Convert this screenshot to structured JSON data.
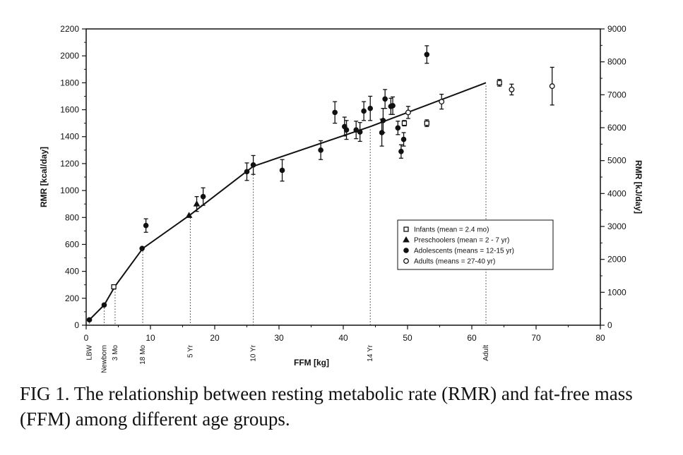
{
  "chart_data": {
    "type": "scatter",
    "xlabel": "FFM [kg]",
    "ylabel": "RMR [kcal/day]",
    "y2label": "RMR [kJ/day]",
    "xlim": [
      0,
      80
    ],
    "ylim": [
      0,
      2200
    ],
    "y2lim": [
      0,
      9000
    ],
    "x_ticks": [
      0,
      10,
      20,
      30,
      40,
      50,
      60,
      70,
      80
    ],
    "x_tick_labels": [
      "0",
      "10",
      "20",
      "30",
      "40",
      "50",
      "60",
      "70",
      "80"
    ],
    "y_ticks": [
      0,
      200,
      400,
      600,
      800,
      1000,
      1200,
      1400,
      1600,
      1800,
      2000,
      2200
    ],
    "y_tick_labels": [
      "0",
      "200",
      "400",
      "600",
      "800",
      "1000",
      "1200",
      "1400",
      "1600",
      "1800",
      "2000",
      "2200"
    ],
    "y2_ticks": [
      0,
      1000,
      2000,
      3000,
      4000,
      5000,
      6000,
      7000,
      8000,
      9000
    ],
    "y2_tick_labels": [
      "0",
      "1000",
      "2000",
      "3000",
      "4000",
      "5000",
      "6000",
      "7000",
      "8000",
      "9000"
    ],
    "age_markers": [
      {
        "label": "LBW",
        "x": 0.5
      },
      {
        "label": "Newborn",
        "x": 2.8
      },
      {
        "label": "3 Mo",
        "x": 4.5
      },
      {
        "label": "18 Mo",
        "x": 8.8
      },
      {
        "label": "5 Yr",
        "x": 16.2
      },
      {
        "label": "10 Yr",
        "x": 26.0
      },
      {
        "label": "14 Yr",
        "x": 44.2
      },
      {
        "label": "Adult",
        "x": 62.2
      }
    ],
    "line": {
      "x": [
        0.5,
        2.8,
        4.5,
        8.8,
        16.2,
        26.0,
        44.2,
        62.2
      ],
      "y": [
        40,
        150,
        290,
        570,
        820,
        1180,
        1475,
        1800
      ]
    },
    "legend": [
      {
        "label": "Infants (mean = 2.4 mo)",
        "marker": "square"
      },
      {
        "label": "Preschoolers (mean = 2 - 7 yr)",
        "marker": "triangle"
      },
      {
        "label": "Adolescents (means = 12-15 yr)",
        "marker": "filled-circle"
      },
      {
        "label": "Adults (means = 27-40 yr)",
        "marker": "open-circle"
      }
    ],
    "series": [
      {
        "name": "Infants (mean = 2.4 mo)",
        "marker": "square",
        "points": [
          {
            "x": 4.3,
            "y": 285,
            "err": 0
          },
          {
            "x": 64.3,
            "y": 1800,
            "err": 25
          },
          {
            "x": 53.0,
            "y": 1500,
            "err": 25
          },
          {
            "x": 49.5,
            "y": 1500,
            "err": 20
          }
        ]
      },
      {
        "name": "Preschoolers (mean = 2 - 7 yr)",
        "marker": "triangle",
        "points": [
          {
            "x": 16.0,
            "y": 815,
            "err": 0
          },
          {
            "x": 17.2,
            "y": 900,
            "err": 55
          }
        ]
      },
      {
        "name": "Adolescents (means = 12-15 yr)",
        "marker": "filled-circle",
        "points": [
          {
            "x": 0.5,
            "y": 40,
            "err": 0
          },
          {
            "x": 2.8,
            "y": 150,
            "err": 0
          },
          {
            "x": 8.7,
            "y": 570,
            "err": 0
          },
          {
            "x": 9.3,
            "y": 740,
            "err": 50
          },
          {
            "x": 18.2,
            "y": 955,
            "err": 65
          },
          {
            "x": 25.0,
            "y": 1140,
            "err": 65
          },
          {
            "x": 26.0,
            "y": 1190,
            "err": 70
          },
          {
            "x": 30.5,
            "y": 1150,
            "err": 80
          },
          {
            "x": 36.5,
            "y": 1300,
            "err": 70
          },
          {
            "x": 38.7,
            "y": 1580,
            "err": 80
          },
          {
            "x": 40.2,
            "y": 1475,
            "err": 70
          },
          {
            "x": 40.5,
            "y": 1450,
            "err": 70
          },
          {
            "x": 42.0,
            "y": 1450,
            "err": 65
          },
          {
            "x": 42.6,
            "y": 1435,
            "err": 70
          },
          {
            "x": 43.2,
            "y": 1590,
            "err": 70
          },
          {
            "x": 44.2,
            "y": 1610,
            "err": 90
          },
          {
            "x": 46.0,
            "y": 1430,
            "err": 100
          },
          {
            "x": 46.2,
            "y": 1520,
            "err": 90
          },
          {
            "x": 46.5,
            "y": 1680,
            "err": 70
          },
          {
            "x": 47.4,
            "y": 1625,
            "err": 60
          },
          {
            "x": 47.7,
            "y": 1630,
            "err": 65
          },
          {
            "x": 48.5,
            "y": 1465,
            "err": 50
          },
          {
            "x": 49.0,
            "y": 1290,
            "err": 50
          },
          {
            "x": 49.4,
            "y": 1380,
            "err": 50
          },
          {
            "x": 53.0,
            "y": 2010,
            "err": 65
          }
        ]
      },
      {
        "name": "Adults (means = 27-40 yr)",
        "marker": "open-circle",
        "points": [
          {
            "x": 50.1,
            "y": 1580,
            "err": 45
          },
          {
            "x": 55.3,
            "y": 1660,
            "err": 55
          },
          {
            "x": 66.2,
            "y": 1750,
            "err": 40
          },
          {
            "x": 72.5,
            "y": 1775,
            "err": 140
          }
        ]
      }
    ]
  },
  "caption": {
    "text": "FIG 1. The relationship between resting metabolic rate (RMR) and fat-free mass (FFM) among different age groups."
  }
}
